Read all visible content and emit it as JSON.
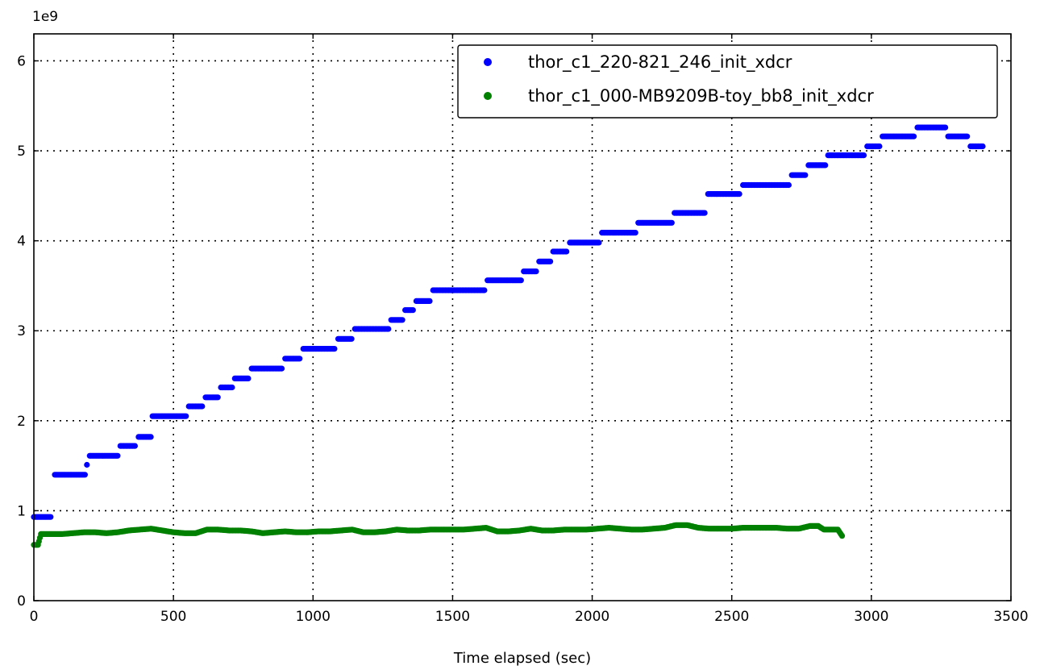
{
  "chart_data": {
    "type": "scatter",
    "xlabel": "Time elapsed (sec)",
    "ylabel": "",
    "y_offset_label": "1e9",
    "xlim": [
      0,
      3500
    ],
    "ylim": [
      0,
      6.3
    ],
    "xticks": [
      0,
      500,
      1000,
      1500,
      2000,
      2500,
      3000,
      3500
    ],
    "yticks": [
      0,
      1,
      2,
      3,
      4,
      5,
      6
    ],
    "xtick_labels": [
      "0",
      "500",
      "1000",
      "1500",
      "2000",
      "2500",
      "3000",
      "3500"
    ],
    "ytick_labels": [
      "0",
      "1",
      "2",
      "3",
      "4",
      "5",
      "6"
    ],
    "grid": true,
    "legend_position": "top-right",
    "series": [
      {
        "name": "thor_c1_220-821_246_init_xdcr",
        "color": "#0000ff",
        "segments": [
          [
            0,
            60,
            0.93
          ],
          [
            75,
            185,
            1.4
          ],
          [
            190,
            192,
            1.51
          ],
          [
            200,
            300,
            1.61
          ],
          [
            310,
            365,
            1.72
          ],
          [
            375,
            420,
            1.82
          ],
          [
            425,
            545,
            2.05
          ],
          [
            555,
            605,
            2.16
          ],
          [
            615,
            660,
            2.26
          ],
          [
            670,
            710,
            2.37
          ],
          [
            720,
            770,
            2.47
          ],
          [
            780,
            890,
            2.58
          ],
          [
            900,
            955,
            2.69
          ],
          [
            965,
            1080,
            2.8
          ],
          [
            1090,
            1140,
            2.91
          ],
          [
            1150,
            1270,
            3.02
          ],
          [
            1280,
            1320,
            3.12
          ],
          [
            1330,
            1360,
            3.23
          ],
          [
            1370,
            1420,
            3.33
          ],
          [
            1430,
            1615,
            3.45
          ],
          [
            1625,
            1745,
            3.56
          ],
          [
            1755,
            1800,
            3.66
          ],
          [
            1810,
            1850,
            3.77
          ],
          [
            1860,
            1910,
            3.88
          ],
          [
            1920,
            2025,
            3.98
          ],
          [
            2035,
            2155,
            4.09
          ],
          [
            2165,
            2285,
            4.2
          ],
          [
            2295,
            2405,
            4.31
          ],
          [
            2415,
            2530,
            4.52
          ],
          [
            2540,
            2705,
            4.62
          ],
          [
            2715,
            2765,
            4.73
          ],
          [
            2775,
            2835,
            4.84
          ],
          [
            2845,
            2975,
            4.95
          ],
          [
            2985,
            3030,
            5.05
          ],
          [
            3040,
            3155,
            5.16
          ],
          [
            3165,
            3265,
            5.26
          ],
          [
            3275,
            3345,
            5.16
          ],
          [
            3355,
            3400,
            5.05
          ]
        ]
      },
      {
        "name": "thor_c1_000-MB9209B-toy_bb8_init_xdcr",
        "color": "#008000",
        "points": [
          [
            0,
            0.62
          ],
          [
            15,
            0.62
          ],
          [
            25,
            0.74
          ],
          [
            60,
            0.74
          ],
          [
            100,
            0.74
          ],
          [
            140,
            0.75
          ],
          [
            180,
            0.76
          ],
          [
            220,
            0.76
          ],
          [
            260,
            0.75
          ],
          [
            300,
            0.76
          ],
          [
            340,
            0.78
          ],
          [
            380,
            0.79
          ],
          [
            420,
            0.8
          ],
          [
            460,
            0.78
          ],
          [
            500,
            0.76
          ],
          [
            540,
            0.75
          ],
          [
            580,
            0.75
          ],
          [
            620,
            0.79
          ],
          [
            660,
            0.79
          ],
          [
            700,
            0.78
          ],
          [
            740,
            0.78
          ],
          [
            780,
            0.77
          ],
          [
            820,
            0.75
          ],
          [
            860,
            0.76
          ],
          [
            900,
            0.77
          ],
          [
            940,
            0.76
          ],
          [
            980,
            0.76
          ],
          [
            1020,
            0.77
          ],
          [
            1060,
            0.77
          ],
          [
            1100,
            0.78
          ],
          [
            1140,
            0.79
          ],
          [
            1180,
            0.76
          ],
          [
            1220,
            0.76
          ],
          [
            1260,
            0.77
          ],
          [
            1300,
            0.79
          ],
          [
            1340,
            0.78
          ],
          [
            1380,
            0.78
          ],
          [
            1420,
            0.79
          ],
          [
            1460,
            0.79
          ],
          [
            1500,
            0.79
          ],
          [
            1540,
            0.79
          ],
          [
            1580,
            0.8
          ],
          [
            1620,
            0.81
          ],
          [
            1660,
            0.77
          ],
          [
            1700,
            0.77
          ],
          [
            1740,
            0.78
          ],
          [
            1780,
            0.8
          ],
          [
            1820,
            0.78
          ],
          [
            1860,
            0.78
          ],
          [
            1900,
            0.79
          ],
          [
            1940,
            0.79
          ],
          [
            1980,
            0.79
          ],
          [
            2020,
            0.8
          ],
          [
            2060,
            0.81
          ],
          [
            2100,
            0.8
          ],
          [
            2140,
            0.79
          ],
          [
            2180,
            0.79
          ],
          [
            2220,
            0.8
          ],
          [
            2260,
            0.81
          ],
          [
            2300,
            0.84
          ],
          [
            2340,
            0.84
          ],
          [
            2380,
            0.81
          ],
          [
            2420,
            0.8
          ],
          [
            2460,
            0.8
          ],
          [
            2500,
            0.8
          ],
          [
            2540,
            0.81
          ],
          [
            2580,
            0.81
          ],
          [
            2620,
            0.81
          ],
          [
            2660,
            0.81
          ],
          [
            2700,
            0.8
          ],
          [
            2740,
            0.8
          ],
          [
            2780,
            0.83
          ],
          [
            2810,
            0.83
          ],
          [
            2830,
            0.79
          ],
          [
            2860,
            0.79
          ],
          [
            2880,
            0.79
          ],
          [
            2895,
            0.72
          ]
        ]
      }
    ]
  }
}
